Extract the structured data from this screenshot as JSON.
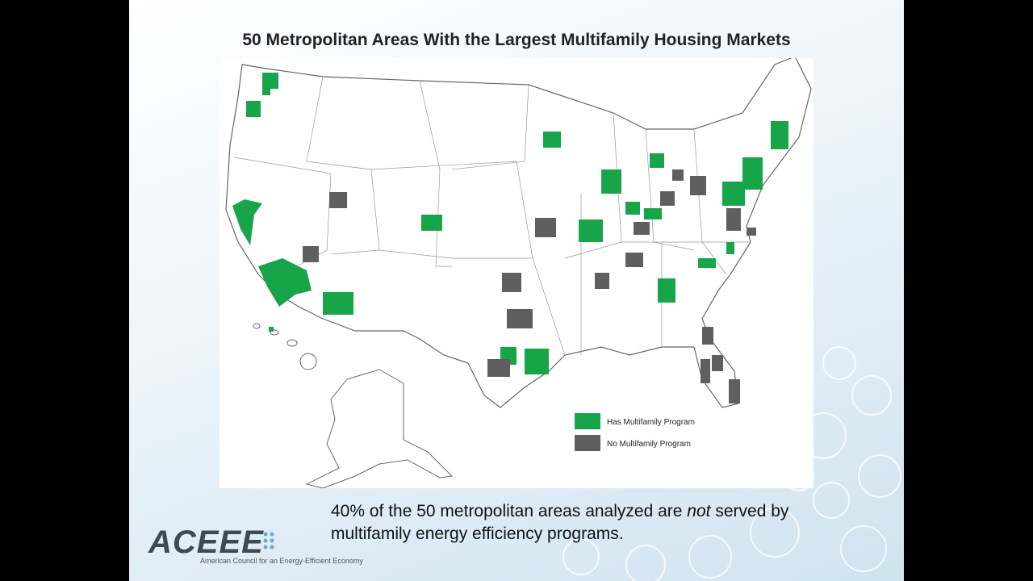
{
  "header": {
    "title": "50 Metropolitan Areas With the Largest Multifamily Housing Markets"
  },
  "map": {
    "legend": [
      "Has Multifamily Program",
      "No Multifamily Program"
    ]
  },
  "caption": {
    "before": "40% of the 50 metropolitan areas analyzed are",
    "emphasis": "not",
    "after": "served by multifamily energy efficiency programs."
  },
  "logo": {
    "name": "ACEEE",
    "tagline": "American Council for an Energy-Efficient Economy"
  }
}
